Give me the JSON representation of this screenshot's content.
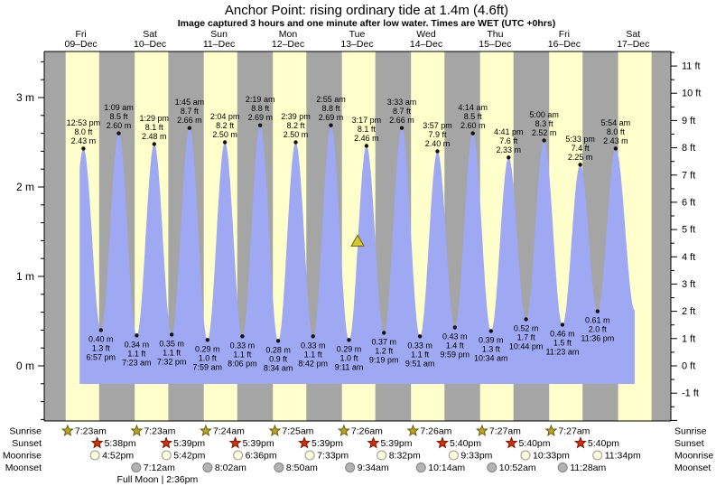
{
  "title": "Anchor Point: rising  ordinary tide at 1.4m (4.6ft)",
  "subtitle": "Image captured 3 hours and one minute after low water. Times are WET (UTC +0hrs)",
  "colors": {
    "day_band": "#ffffcc",
    "night_band": "#a5a5a5",
    "tide_fill": "#9fa8f2",
    "day_label": "#e03333",
    "axis": "#000000",
    "tide_dot": "#111111",
    "sunrise_icon": "#b5a525",
    "sunrise_icon_border": "#6b5d10",
    "sunset_icon": "#d03010",
    "sunset_icon_border": "#7a1800",
    "moonrise_icon": "#ffffdd",
    "moonrise_icon_border": "#999999",
    "moonset_icon": "#b3b3b3",
    "moonset_icon_border": "#7f7f7f",
    "marker_fill": "#d6c832",
    "marker_border": "#6b6400"
  },
  "chart_data": {
    "type": "area",
    "ylabel_left_unit": "m",
    "ylabel_right_unit": "ft",
    "ylim_m": [
      -0.62,
      3.52
    ],
    "grid": false,
    "days": [
      {
        "name": "Fri",
        "date": "09–Dec"
      },
      {
        "name": "Sat",
        "date": "10–Dec"
      },
      {
        "name": "Sun",
        "date": "11–Dec"
      },
      {
        "name": "Mon",
        "date": "12–Dec"
      },
      {
        "name": "Tue",
        "date": "13–Dec"
      },
      {
        "name": "Wed",
        "date": "14–Dec"
      },
      {
        "name": "Thu",
        "date": "15–Dec"
      },
      {
        "name": "Fri",
        "date": "16–Dec"
      },
      {
        "name": "Sat",
        "date": "17–Dec"
      }
    ],
    "y_axis_left_ticks": [
      {
        "v": 0,
        "label": "0 m"
      },
      {
        "v": 1,
        "label": "1 m"
      },
      {
        "v": 2,
        "label": "2 m"
      },
      {
        "v": 3,
        "label": "3 m"
      }
    ],
    "y_axis_right_ticks": [
      {
        "v": -1,
        "label": "-1 ft"
      },
      {
        "v": 0,
        "label": "0 ft"
      },
      {
        "v": 1,
        "label": "1 ft"
      },
      {
        "v": 2,
        "label": "2 ft"
      },
      {
        "v": 3,
        "label": "3 ft"
      },
      {
        "v": 4,
        "label": "4 ft"
      },
      {
        "v": 5,
        "label": "5 ft"
      },
      {
        "v": 6,
        "label": "6 ft"
      },
      {
        "v": 7,
        "label": "7 ft"
      },
      {
        "v": 8,
        "label": "8 ft"
      },
      {
        "v": 9,
        "label": "9 ft"
      },
      {
        "v": 10,
        "label": "10 ft"
      },
      {
        "v": 11,
        "label": "11 ft"
      }
    ],
    "tide_events": [
      {
        "d": 0,
        "type": "high",
        "time": "12:53 pm",
        "ft": "8.0 ft",
        "m": "2.43 m",
        "v": 2.43
      },
      {
        "d": 0,
        "type": "low",
        "time": "6:57 pm",
        "ft": "1.3 ft",
        "m": "0.40 m",
        "v": 0.4
      },
      {
        "d": 1,
        "type": "high",
        "time": "1:09 am",
        "ft": "8.5 ft",
        "m": "2.60 m",
        "v": 2.6
      },
      {
        "d": 1,
        "type": "low",
        "time": "7:23 am",
        "ft": "1.1 ft",
        "m": "0.34 m",
        "v": 0.34
      },
      {
        "d": 1,
        "type": "high",
        "time": "1:29 pm",
        "ft": "8.1 ft",
        "m": "2.48 m",
        "v": 2.48
      },
      {
        "d": 1,
        "type": "low",
        "time": "7:32 pm",
        "ft": "1.1 ft",
        "m": "0.35 m",
        "v": 0.35
      },
      {
        "d": 2,
        "type": "high",
        "time": "1:45 am",
        "ft": "8.7 ft",
        "m": "2.66 m",
        "v": 2.66
      },
      {
        "d": 2,
        "type": "low",
        "time": "7:59 am",
        "ft": "1.0 ft",
        "m": "0.29 m",
        "v": 0.29
      },
      {
        "d": 2,
        "type": "high",
        "time": "2:04 pm",
        "ft": "8.2 ft",
        "m": "2.50 m",
        "v": 2.5
      },
      {
        "d": 2,
        "type": "low",
        "time": "8:06 pm",
        "ft": "1.1 ft",
        "m": "0.33 m",
        "v": 0.33
      },
      {
        "d": 3,
        "type": "high",
        "time": "2:19 am",
        "ft": "8.8 ft",
        "m": "2.69 m",
        "v": 2.69
      },
      {
        "d": 3,
        "type": "low",
        "time": "8:34 am",
        "ft": "0.9 ft",
        "m": "0.28 m",
        "v": 0.28
      },
      {
        "d": 3,
        "type": "high",
        "time": "2:39 pm",
        "ft": "8.2 ft",
        "m": "2.50 m",
        "v": 2.5
      },
      {
        "d": 3,
        "type": "low",
        "time": "8:42 pm",
        "ft": "1.1 ft",
        "m": "0.33 m",
        "v": 0.33
      },
      {
        "d": 4,
        "type": "high",
        "time": "2:55 am",
        "ft": "8.8 ft",
        "m": "2.69 m",
        "v": 2.69
      },
      {
        "d": 4,
        "type": "low",
        "time": "9:11 am",
        "ft": "1.0 ft",
        "m": "0.29 m",
        "v": 0.29
      },
      {
        "d": 4,
        "type": "high",
        "time": "3:17 pm",
        "ft": "8.1 ft",
        "m": "2.46 m",
        "v": 2.46
      },
      {
        "d": 4,
        "type": "low",
        "time": "9:19 pm",
        "ft": "1.2 ft",
        "m": "0.37 m",
        "v": 0.37
      },
      {
        "d": 5,
        "type": "high",
        "time": "3:33 am",
        "ft": "8.7 ft",
        "m": "2.66 m",
        "v": 2.66
      },
      {
        "d": 5,
        "type": "low",
        "time": "9:51 am",
        "ft": "1.1 ft",
        "m": "0.33 m",
        "v": 0.33
      },
      {
        "d": 5,
        "type": "high",
        "time": "3:57 pm",
        "ft": "7.9 ft",
        "m": "2.40 m",
        "v": 2.4
      },
      {
        "d": 5,
        "type": "low",
        "time": "9:59 pm",
        "ft": "1.4 ft",
        "m": "0.43 m",
        "v": 0.43
      },
      {
        "d": 6,
        "type": "high",
        "time": "4:14 am",
        "ft": "8.5 ft",
        "m": "2.60 m",
        "v": 2.6
      },
      {
        "d": 6,
        "type": "low",
        "time": "10:34 am",
        "ft": "1.3 ft",
        "m": "0.39 m",
        "v": 0.39
      },
      {
        "d": 6,
        "type": "high",
        "time": "4:41 pm",
        "ft": "7.6 ft",
        "m": "2.33 m",
        "v": 2.33
      },
      {
        "d": 6,
        "type": "low",
        "time": "10:44 pm",
        "ft": "1.7 ft",
        "m": "0.52 m",
        "v": 0.52
      },
      {
        "d": 7,
        "type": "high",
        "time": "5:00 am",
        "ft": "8.3 ft",
        "m": "2.52 m",
        "v": 2.52
      },
      {
        "d": 7,
        "type": "low",
        "time": "11:23 am",
        "ft": "1.5 ft",
        "m": "0.46 m",
        "v": 0.46
      },
      {
        "d": 7,
        "type": "high",
        "time": "5:33 pm",
        "ft": "7.4 ft",
        "m": "2.25 m",
        "v": 2.25
      },
      {
        "d": 7,
        "type": "low",
        "time": "11:36 pm",
        "ft": "2.0 ft",
        "m": "0.61 m",
        "v": 0.61
      },
      {
        "d": 8,
        "type": "high",
        "time": "5:54 am",
        "ft": "8.0 ft",
        "m": "2.43 m",
        "v": 2.43
      }
    ],
    "current_level_marker": {
      "d": 4,
      "time": "12:12 pm",
      "level_m": 1.4
    },
    "astro": {
      "sunrise": {
        "label": "Sunrise",
        "entries": [
          {
            "d": 0,
            "time": "7:23am"
          },
          {
            "d": 1,
            "time": "7:23am"
          },
          {
            "d": 2,
            "time": "7:24am"
          },
          {
            "d": 3,
            "time": "7:25am"
          },
          {
            "d": 4,
            "time": "7:26am"
          },
          {
            "d": 5,
            "time": "7:26am"
          },
          {
            "d": 6,
            "time": "7:27am"
          },
          {
            "d": 7,
            "time": "7:27am"
          }
        ]
      },
      "sunset": {
        "label": "Sunset",
        "entries": [
          {
            "d": 0,
            "time": "5:38pm"
          },
          {
            "d": 1,
            "time": "5:39pm"
          },
          {
            "d": 2,
            "time": "5:39pm"
          },
          {
            "d": 3,
            "time": "5:39pm"
          },
          {
            "d": 4,
            "time": "5:39pm"
          },
          {
            "d": 5,
            "time": "5:40pm"
          },
          {
            "d": 6,
            "time": "5:40pm"
          },
          {
            "d": 7,
            "time": "5:40pm"
          }
        ]
      },
      "moonrise": {
        "label": "Moonrise",
        "entries": [
          {
            "d": 0,
            "time": "4:52pm"
          },
          {
            "d": 1,
            "time": "5:42pm"
          },
          {
            "d": 2,
            "time": "6:36pm"
          },
          {
            "d": 3,
            "time": "7:33pm"
          },
          {
            "d": 4,
            "time": "8:32pm"
          },
          {
            "d": 5,
            "time": "9:33pm"
          },
          {
            "d": 6,
            "time": "10:33pm"
          },
          {
            "d": 7,
            "time": "11:34pm"
          }
        ]
      },
      "moonset": {
        "label": "Moonset",
        "entries": [
          {
            "d": 1,
            "time": "7:12am"
          },
          {
            "d": 2,
            "time": "8:02am"
          },
          {
            "d": 3,
            "time": "8:50am"
          },
          {
            "d": 4,
            "time": "9:34am"
          },
          {
            "d": 5,
            "time": "10:14am"
          },
          {
            "d": 6,
            "time": "10:52am"
          },
          {
            "d": 7,
            "time": "11:28am"
          }
        ]
      }
    },
    "full_moon": {
      "label": "Full Moon | 2:36pm",
      "d": 1,
      "time": "2:36pm"
    }
  }
}
